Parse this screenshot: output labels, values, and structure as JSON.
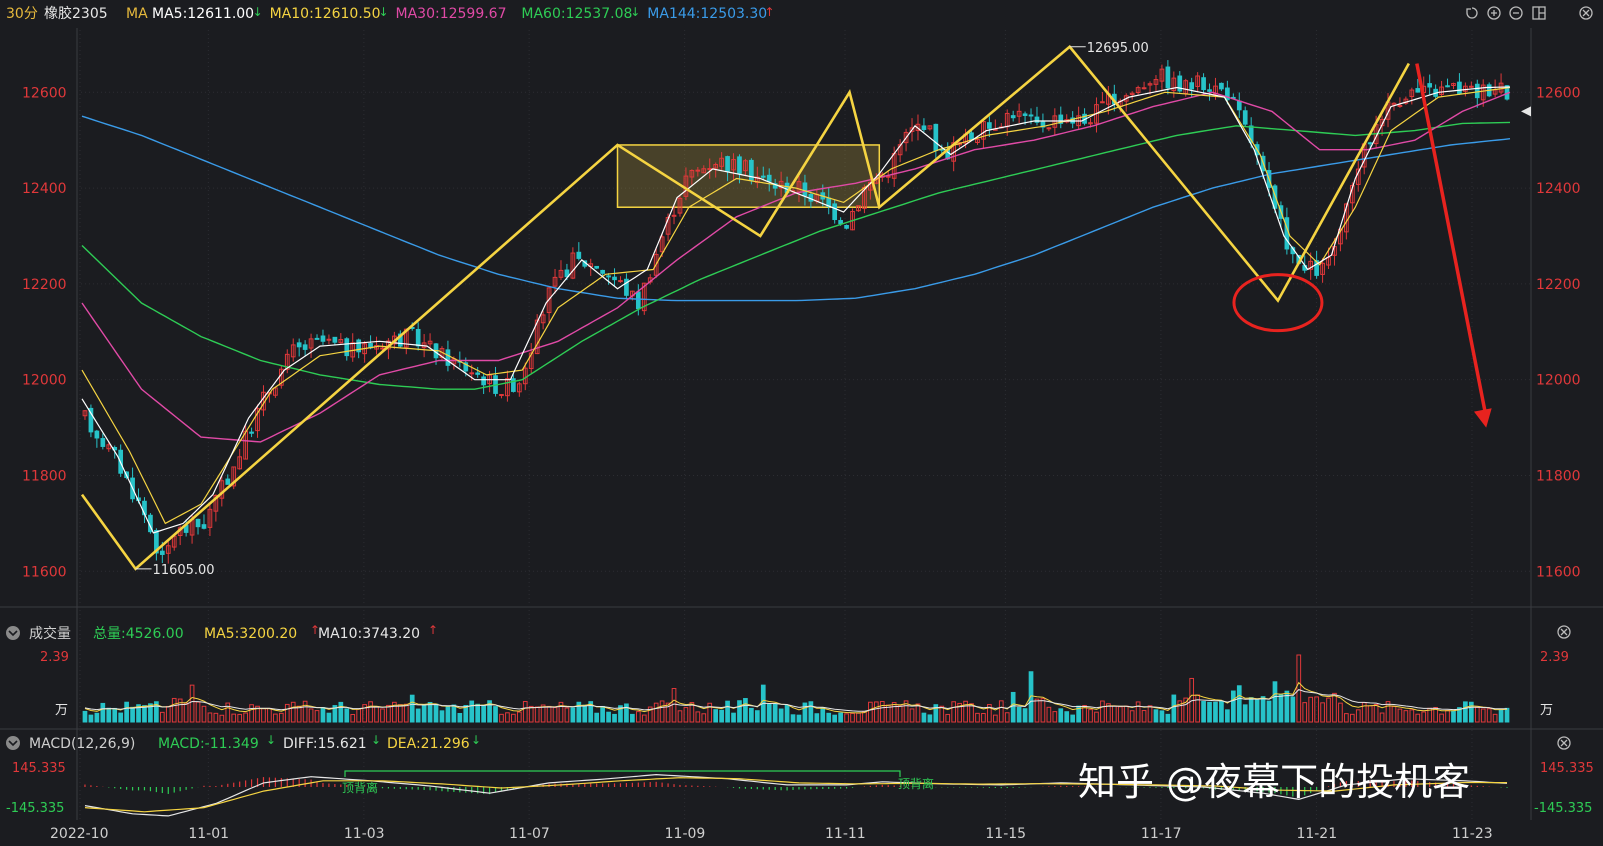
{
  "header": {
    "period": "30分",
    "symbol": "橡胶2305",
    "ma_label": "MA",
    "ma_items": [
      {
        "text": "MA5:12611.00",
        "arrow": "down",
        "color": "#ffffff"
      },
      {
        "text": "MA10:12610.50",
        "arrow": "down",
        "color": "#f5d442"
      },
      {
        "text": "MA30:12599.67",
        "arrow": "",
        "color": "#e04aa6"
      },
      {
        "text": "MA60:12537.08",
        "arrow": "down",
        "color": "#2ecc55"
      },
      {
        "text": "MA144:12503.30",
        "arrow": "up",
        "color": "#3a9be8"
      }
    ],
    "icons": [
      "undo-icon",
      "zoom-in-icon",
      "zoom-out-icon",
      "layout-icon",
      "close-icon"
    ]
  },
  "price_panel": {
    "y_ticks": [
      11600,
      11800,
      12000,
      12200,
      12400,
      12600
    ],
    "ylim": [
      11540,
      12730
    ],
    "high_label": "12695.00",
    "low_label": "11605.00"
  },
  "volume_panel": {
    "title": "成交量",
    "total_label": "总量:4526.00",
    "ma5_label": "MA5:3200.20",
    "ma10_label": "MA10:3743.20",
    "top_label": "2.39",
    "unit_label": "万"
  },
  "macd_panel": {
    "title": "MACD(12,26,9)",
    "macd_label": "MACD:-11.349",
    "diff_label": "DIFF:15.621",
    "dea_label": "DEA:21.296",
    "top_label": "145.335",
    "bottom_label": "-145.335",
    "annotation1": "顶背离",
    "annotation2": "顶背离"
  },
  "x_axis": {
    "ticks": [
      "2022-10",
      "11-01",
      "11-03",
      "11-07",
      "11-09",
      "11-11",
      "11-15",
      "11-17",
      "11-21",
      "11-23"
    ]
  },
  "watermark": "知乎 @夜幕下的投机客",
  "colors": {
    "up": "#e0383a",
    "down": "#27c3c9",
    "ma5": "#ffffff",
    "ma10": "#f5d442",
    "ma30": "#e04aa6",
    "ma60": "#2ecc55",
    "ma144": "#3a9be8",
    "zigzag": "#f5d442",
    "axis_text": "#e0383a",
    "bg": "#1b1c20"
  },
  "chart_data": {
    "type": "candlestick",
    "symbol": "橡胶2305",
    "period": "30分",
    "x_ticks": [
      "2022-10",
      "11-01",
      "11-03",
      "11-07",
      "11-09",
      "11-11",
      "11-15",
      "11-17",
      "11-21",
      "11-23"
    ],
    "y_ticks": [
      11600,
      11800,
      12000,
      12200,
      12400,
      12600
    ],
    "ylim": [
      11540,
      12730
    ],
    "price_path": [
      [
        0,
        11920
      ],
      [
        5,
        11840
      ],
      [
        10,
        11720
      ],
      [
        13,
        11620
      ],
      [
        15,
        11680
      ],
      [
        20,
        11700
      ],
      [
        25,
        11820
      ],
      [
        30,
        11960
      ],
      [
        35,
        12060
      ],
      [
        40,
        12080
      ],
      [
        45,
        12060
      ],
      [
        50,
        12080
      ],
      [
        55,
        12090
      ],
      [
        60,
        12050
      ],
      [
        65,
        12020
      ],
      [
        70,
        11980
      ],
      [
        73,
        12000
      ],
      [
        78,
        12180
      ],
      [
        82,
        12250
      ],
      [
        86,
        12240
      ],
      [
        90,
        12200
      ],
      [
        93,
        12160
      ],
      [
        97,
        12300
      ],
      [
        101,
        12420
      ],
      [
        106,
        12460
      ],
      [
        111,
        12440
      ],
      [
        115,
        12410
      ],
      [
        120,
        12400
      ],
      [
        124,
        12370
      ],
      [
        128,
        12330
      ],
      [
        131,
        12400
      ],
      [
        135,
        12440
      ],
      [
        138,
        12510
      ],
      [
        141,
        12540
      ],
      [
        144,
        12470
      ],
      [
        148,
        12500
      ],
      [
        152,
        12530
      ],
      [
        156,
        12560
      ],
      [
        160,
        12530
      ],
      [
        164,
        12550
      ],
      [
        168,
        12540
      ],
      [
        172,
        12580
      ],
      [
        176,
        12600
      ],
      [
        180,
        12640
      ],
      [
        184,
        12610
      ],
      [
        188,
        12620
      ],
      [
        192,
        12600
      ],
      [
        196,
        12500
      ],
      [
        200,
        12350
      ],
      [
        204,
        12230
      ],
      [
        208,
        12230
      ],
      [
        211,
        12300
      ],
      [
        214,
        12450
      ],
      [
        218,
        12560
      ],
      [
        222,
        12600
      ],
      [
        226,
        12600
      ],
      [
        230,
        12610
      ],
      [
        234,
        12600
      ],
      [
        238,
        12620
      ],
      [
        240,
        12580
      ]
    ],
    "ma5_path": [
      [
        0,
        11960
      ],
      [
        6,
        11840
      ],
      [
        12,
        11680
      ],
      [
        17,
        11700
      ],
      [
        22,
        11760
      ],
      [
        28,
        11920
      ],
      [
        34,
        12020
      ],
      [
        40,
        12070
      ],
      [
        50,
        12080
      ],
      [
        58,
        12070
      ],
      [
        66,
        12000
      ],
      [
        72,
        12000
      ],
      [
        78,
        12160
      ],
      [
        84,
        12250
      ],
      [
        90,
        12190
      ],
      [
        95,
        12230
      ],
      [
        100,
        12380
      ],
      [
        106,
        12440
      ],
      [
        114,
        12420
      ],
      [
        122,
        12380
      ],
      [
        128,
        12350
      ],
      [
        134,
        12430
      ],
      [
        140,
        12530
      ],
      [
        146,
        12470
      ],
      [
        152,
        12520
      ],
      [
        160,
        12540
      ],
      [
        168,
        12540
      ],
      [
        176,
        12590
      ],
      [
        184,
        12610
      ],
      [
        192,
        12590
      ],
      [
        197,
        12480
      ],
      [
        202,
        12300
      ],
      [
        206,
        12230
      ],
      [
        210,
        12260
      ],
      [
        214,
        12420
      ],
      [
        220,
        12570
      ],
      [
        228,
        12600
      ],
      [
        236,
        12610
      ],
      [
        240,
        12611
      ]
    ],
    "ma10_path": [
      [
        0,
        12020
      ],
      [
        8,
        11850
      ],
      [
        14,
        11700
      ],
      [
        20,
        11740
      ],
      [
        26,
        11860
      ],
      [
        32,
        11980
      ],
      [
        40,
        12050
      ],
      [
        50,
        12070
      ],
      [
        60,
        12060
      ],
      [
        68,
        12010
      ],
      [
        74,
        12020
      ],
      [
        80,
        12150
      ],
      [
        88,
        12220
      ],
      [
        96,
        12230
      ],
      [
        102,
        12360
      ],
      [
        110,
        12420
      ],
      [
        120,
        12400
      ],
      [
        128,
        12370
      ],
      [
        136,
        12440
      ],
      [
        144,
        12480
      ],
      [
        152,
        12510
      ],
      [
        162,
        12530
      ],
      [
        172,
        12560
      ],
      [
        182,
        12600
      ],
      [
        192,
        12590
      ],
      [
        198,
        12470
      ],
      [
        203,
        12300
      ],
      [
        208,
        12240
      ],
      [
        214,
        12360
      ],
      [
        220,
        12520
      ],
      [
        228,
        12590
      ],
      [
        240,
        12610
      ]
    ],
    "ma30_path": [
      [
        0,
        12160
      ],
      [
        10,
        11980
      ],
      [
        20,
        11880
      ],
      [
        30,
        11870
      ],
      [
        40,
        11930
      ],
      [
        50,
        12010
      ],
      [
        60,
        12040
      ],
      [
        70,
        12040
      ],
      [
        80,
        12080
      ],
      [
        90,
        12150
      ],
      [
        100,
        12250
      ],
      [
        110,
        12340
      ],
      [
        120,
        12390
      ],
      [
        130,
        12410
      ],
      [
        140,
        12440
      ],
      [
        150,
        12480
      ],
      [
        160,
        12500
      ],
      [
        170,
        12530
      ],
      [
        180,
        12570
      ],
      [
        190,
        12600
      ],
      [
        200,
        12560
      ],
      [
        208,
        12480
      ],
      [
        216,
        12480
      ],
      [
        224,
        12500
      ],
      [
        232,
        12560
      ],
      [
        240,
        12600
      ]
    ],
    "ma60_path": [
      [
        0,
        12280
      ],
      [
        10,
        12160
      ],
      [
        20,
        12090
      ],
      [
        30,
        12040
      ],
      [
        40,
        12010
      ],
      [
        50,
        11990
      ],
      [
        60,
        11980
      ],
      [
        66,
        11980
      ],
      [
        74,
        12000
      ],
      [
        84,
        12080
      ],
      [
        94,
        12150
      ],
      [
        104,
        12210
      ],
      [
        114,
        12260
      ],
      [
        124,
        12310
      ],
      [
        134,
        12350
      ],
      [
        144,
        12390
      ],
      [
        154,
        12420
      ],
      [
        164,
        12450
      ],
      [
        174,
        12480
      ],
      [
        184,
        12510
      ],
      [
        194,
        12530
      ],
      [
        204,
        12520
      ],
      [
        214,
        12510
      ],
      [
        224,
        12520
      ],
      [
        232,
        12535
      ],
      [
        240,
        12537
      ]
    ],
    "ma144_path": [
      [
        0,
        12550
      ],
      [
        10,
        12510
      ],
      [
        20,
        12460
      ],
      [
        30,
        12410
      ],
      [
        40,
        12360
      ],
      [
        50,
        12310
      ],
      [
        60,
        12260
      ],
      [
        70,
        12220
      ],
      [
        80,
        12190
      ],
      [
        90,
        12170
      ],
      [
        100,
        12165
      ],
      [
        110,
        12165
      ],
      [
        120,
        12165
      ],
      [
        130,
        12170
      ],
      [
        140,
        12190
      ],
      [
        150,
        12220
      ],
      [
        160,
        12260
      ],
      [
        170,
        12310
      ],
      [
        180,
        12360
      ],
      [
        190,
        12400
      ],
      [
        200,
        12430
      ],
      [
        210,
        12450
      ],
      [
        220,
        12470
      ],
      [
        230,
        12490
      ],
      [
        240,
        12503
      ]
    ],
    "zigzag": [
      [
        0,
        11760
      ],
      [
        9,
        11605
      ],
      [
        90,
        12490
      ],
      [
        114,
        12300
      ],
      [
        129,
        12600
      ],
      [
        134,
        12360
      ],
      [
        166,
        12695
      ],
      [
        201,
        12165
      ],
      [
        223,
        12660
      ]
    ],
    "range_box": {
      "x0": 90,
      "x1": 134,
      "y0": 12360,
      "y1": 12490
    },
    "high": 12695.0,
    "low": 11605.0,
    "last": 12560,
    "forecast_arrow": {
      "from": [
        223,
        12660
      ],
      "to": [
        236,
        11900
      ]
    },
    "circle_marker": {
      "x": 201,
      "y": 12165
    },
    "volume": {
      "total": 4526.0,
      "ma5": 3200.2,
      "ma10": 3743.2,
      "max_label": 2.39,
      "unit": "万",
      "spikes": [
        [
          18,
          0.55
        ],
        [
          55,
          0.4
        ],
        [
          99,
          0.5
        ],
        [
          114,
          0.55
        ],
        [
          159,
          0.75
        ],
        [
          186,
          0.65
        ],
        [
          200,
          0.6
        ],
        [
          204,
          1.0
        ],
        [
          232,
          0.3
        ]
      ]
    },
    "macd": {
      "params": "12,26,9",
      "macd": -11.349,
      "diff": 15.621,
      "dea": 21.296,
      "range": [
        -145.335,
        145.335
      ],
      "diff_path": [
        [
          0,
          -90
        ],
        [
          8,
          -130
        ],
        [
          14,
          -140
        ],
        [
          22,
          -80
        ],
        [
          30,
          20
        ],
        [
          38,
          50
        ],
        [
          48,
          30
        ],
        [
          58,
          5
        ],
        [
          68,
          -30
        ],
        [
          78,
          20
        ],
        [
          88,
          40
        ],
        [
          96,
          60
        ],
        [
          108,
          40
        ],
        [
          118,
          10
        ],
        [
          128,
          10
        ],
        [
          134,
          25
        ],
        [
          144,
          15
        ],
        [
          154,
          10
        ],
        [
          164,
          20
        ],
        [
          176,
          10
        ],
        [
          188,
          0
        ],
        [
          198,
          -30
        ],
        [
          204,
          -60
        ],
        [
          212,
          10
        ],
        [
          222,
          40
        ],
        [
          232,
          30
        ],
        [
          240,
          16
        ]
      ],
      "dea_path": [
        [
          0,
          -100
        ],
        [
          10,
          -120
        ],
        [
          20,
          -100
        ],
        [
          30,
          -20
        ],
        [
          40,
          30
        ],
        [
          50,
          30
        ],
        [
          60,
          15
        ],
        [
          70,
          -5
        ],
        [
          80,
          10
        ],
        [
          90,
          30
        ],
        [
          100,
          45
        ],
        [
          110,
          40
        ],
        [
          120,
          20
        ],
        [
          130,
          15
        ],
        [
          140,
          18
        ],
        [
          150,
          14
        ],
        [
          160,
          16
        ],
        [
          170,
          14
        ],
        [
          180,
          10
        ],
        [
          190,
          5
        ],
        [
          200,
          -15
        ],
        [
          210,
          -20
        ],
        [
          220,
          10
        ],
        [
          232,
          22
        ],
        [
          240,
          21
        ]
      ]
    }
  }
}
